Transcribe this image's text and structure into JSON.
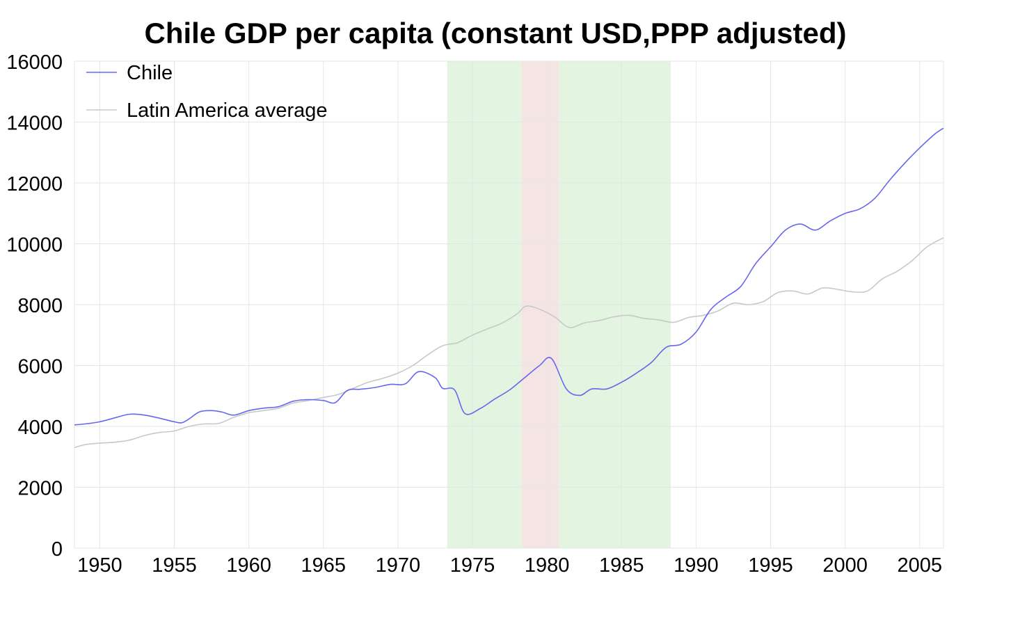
{
  "chart_data": {
    "type": "line",
    "title": "Chile GDP per capita (constant USD,PPP adjusted)",
    "xlabel": "",
    "ylabel": "",
    "xlim": [
      1948.3,
      2006.6
    ],
    "ylim": [
      0,
      16000
    ],
    "x_ticks": [
      "1950",
      "1955",
      "1960",
      "1965",
      "1970",
      "1975",
      "1980",
      "1985",
      "1990",
      "1995",
      "2000",
      "2005"
    ],
    "y_ticks": [
      "0",
      "2000",
      "4000",
      "6000",
      "8000",
      "10000",
      "12000",
      "14000",
      "16000"
    ],
    "grid": true,
    "legend_position": "top-left",
    "shaded_periods": [
      {
        "start": 1973.3,
        "end": 1978.3,
        "color": "#e3f4e1"
      },
      {
        "start": 1978.3,
        "end": 1980.8,
        "color": "#f5e4e4"
      },
      {
        "start": 1980.8,
        "end": 1988.3,
        "color": "#e3f4e1"
      }
    ],
    "series": [
      {
        "name": "Chile",
        "color": "#6666ee",
        "points": [
          [
            1948.3,
            4050
          ],
          [
            1949,
            4080
          ],
          [
            1950,
            4150
          ],
          [
            1951,
            4280
          ],
          [
            1952,
            4400
          ],
          [
            1953,
            4370
          ],
          [
            1954,
            4270
          ],
          [
            1955,
            4150
          ],
          [
            1955.5,
            4120
          ],
          [
            1956,
            4250
          ],
          [
            1956.7,
            4480
          ],
          [
            1957.5,
            4520
          ],
          [
            1958.2,
            4470
          ],
          [
            1959,
            4370
          ],
          [
            1960,
            4520
          ],
          [
            1961,
            4600
          ],
          [
            1962,
            4650
          ],
          [
            1963,
            4830
          ],
          [
            1964,
            4880
          ],
          [
            1965,
            4850
          ],
          [
            1965.8,
            4780
          ],
          [
            1966.6,
            5180
          ],
          [
            1967.5,
            5220
          ],
          [
            1968.5,
            5280
          ],
          [
            1969.5,
            5380
          ],
          [
            1970.5,
            5400
          ],
          [
            1971.4,
            5800
          ],
          [
            1972.5,
            5600
          ],
          [
            1973,
            5250
          ],
          [
            1973.8,
            5200
          ],
          [
            1974.5,
            4420
          ],
          [
            1975.5,
            4580
          ],
          [
            1976.5,
            4900
          ],
          [
            1977.5,
            5200
          ],
          [
            1978.5,
            5600
          ],
          [
            1979.5,
            6000
          ],
          [
            1980.3,
            6230
          ],
          [
            1981.3,
            5230
          ],
          [
            1982.2,
            5020
          ],
          [
            1983,
            5230
          ],
          [
            1984,
            5230
          ],
          [
            1985,
            5450
          ],
          [
            1986,
            5750
          ],
          [
            1987,
            6100
          ],
          [
            1988,
            6600
          ],
          [
            1989,
            6700
          ],
          [
            1990,
            7100
          ],
          [
            1991,
            7850
          ],
          [
            1992,
            8250
          ],
          [
            1993,
            8600
          ],
          [
            1994,
            9350
          ],
          [
            1995,
            9900
          ],
          [
            1996,
            10450
          ],
          [
            1997,
            10650
          ],
          [
            1998,
            10450
          ],
          [
            1999,
            10750
          ],
          [
            2000,
            11000
          ],
          [
            2001,
            11150
          ],
          [
            2002,
            11500
          ],
          [
            2003,
            12100
          ],
          [
            2004,
            12650
          ],
          [
            2005,
            13150
          ],
          [
            2006,
            13600
          ],
          [
            2006.6,
            13800
          ]
        ]
      },
      {
        "name": "Latin America average",
        "color": "#c8c8c8",
        "points": [
          [
            1948.3,
            3300
          ],
          [
            1949,
            3400
          ],
          [
            1950,
            3450
          ],
          [
            1951,
            3480
          ],
          [
            1952,
            3550
          ],
          [
            1953,
            3700
          ],
          [
            1954,
            3800
          ],
          [
            1955,
            3850
          ],
          [
            1956,
            4000
          ],
          [
            1957,
            4080
          ],
          [
            1958,
            4100
          ],
          [
            1959,
            4300
          ],
          [
            1960,
            4450
          ],
          [
            1961,
            4520
          ],
          [
            1962,
            4600
          ],
          [
            1963,
            4770
          ],
          [
            1964,
            4850
          ],
          [
            1965,
            4950
          ],
          [
            1966,
            5050
          ],
          [
            1967,
            5250
          ],
          [
            1968,
            5450
          ],
          [
            1969,
            5580
          ],
          [
            1970,
            5750
          ],
          [
            1971,
            6000
          ],
          [
            1972,
            6350
          ],
          [
            1973,
            6650
          ],
          [
            1974,
            6750
          ],
          [
            1975,
            7000
          ],
          [
            1976,
            7200
          ],
          [
            1977,
            7400
          ],
          [
            1978,
            7700
          ],
          [
            1978.6,
            7950
          ],
          [
            1979.5,
            7850
          ],
          [
            1980.5,
            7600
          ],
          [
            1981.5,
            7250
          ],
          [
            1982.5,
            7400
          ],
          [
            1983.5,
            7480
          ],
          [
            1984.5,
            7600
          ],
          [
            1985.5,
            7650
          ],
          [
            1986.5,
            7550
          ],
          [
            1987.5,
            7500
          ],
          [
            1988.5,
            7420
          ],
          [
            1989.5,
            7580
          ],
          [
            1990.5,
            7650
          ],
          [
            1991.5,
            7800
          ],
          [
            1992.5,
            8050
          ],
          [
            1993.5,
            8000
          ],
          [
            1994.5,
            8100
          ],
          [
            1995.5,
            8400
          ],
          [
            1996.5,
            8450
          ],
          [
            1997.5,
            8350
          ],
          [
            1998.5,
            8550
          ],
          [
            1999.5,
            8500
          ],
          [
            2000.5,
            8420
          ],
          [
            2001.5,
            8450
          ],
          [
            2002.5,
            8850
          ],
          [
            2003.5,
            9100
          ],
          [
            2004.5,
            9450
          ],
          [
            2005.5,
            9900
          ],
          [
            2006.6,
            10200
          ]
        ]
      }
    ]
  }
}
